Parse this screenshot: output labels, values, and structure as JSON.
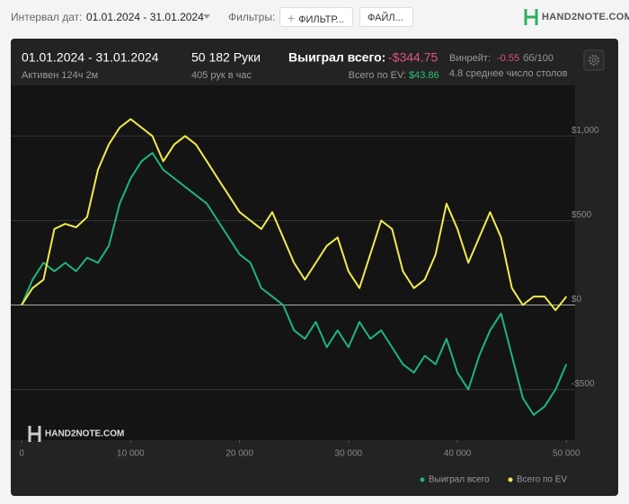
{
  "toolbar": {
    "date_label": "Интервал дат:",
    "date_range": "01.01.2024 - 31.01.2024",
    "filters_label": "Фильтры:",
    "filter_button": "ФИЛЬТР...",
    "file_button": "ФАЙЛ...",
    "logo": "HAND2NOTE.COM"
  },
  "summary": {
    "period": "01.01.2024 - 31.01.2024",
    "active": "Активен 124ч 2м",
    "hands": "50 182 Руки",
    "hands_per_hour": "405 рук в час",
    "won_label": "Выиграл всего:",
    "won_value": "-$344.75",
    "ev_label": "Всего по EV:",
    "ev_value": "$43.86",
    "winrate_label": "Винрейт:",
    "winrate_value": "-0.55",
    "winrate_unit": "бб/100",
    "tables": "4.8 среднее число столов"
  },
  "chart_data": {
    "type": "line",
    "watermark": "HAND2NOTE.COM",
    "x": [
      0,
      1000,
      2000,
      3000,
      4000,
      5000,
      6000,
      7000,
      8000,
      9000,
      10000,
      11000,
      12000,
      13000,
      14000,
      15000,
      16000,
      17000,
      18000,
      19000,
      20000,
      21000,
      22000,
      23000,
      24000,
      25000,
      26000,
      27000,
      28000,
      29000,
      30000,
      31000,
      32000,
      33000,
      34000,
      35000,
      36000,
      37000,
      38000,
      39000,
      40000,
      41000,
      42000,
      43000,
      44000,
      45000,
      46000,
      47000,
      48000,
      49000,
      50000
    ],
    "series": [
      {
        "name": "Выиграл всего",
        "color": "#1fb57b",
        "values": [
          0,
          150,
          250,
          200,
          250,
          200,
          280,
          250,
          350,
          600,
          750,
          850,
          900,
          800,
          750,
          700,
          650,
          600,
          500,
          400,
          300,
          250,
          100,
          50,
          0,
          -150,
          -200,
          -100,
          -250,
          -150,
          -250,
          -100,
          -200,
          -150,
          -250,
          -350,
          -400,
          -300,
          -350,
          -200,
          -400,
          -500,
          -300,
          -150,
          -50,
          -300,
          -550,
          -650,
          -600,
          -500,
          -350
        ]
      },
      {
        "name": "Всего по EV",
        "color": "#f2ea4f",
        "values": [
          0,
          100,
          150,
          450,
          480,
          460,
          520,
          800,
          950,
          1050,
          1100,
          1050,
          1000,
          850,
          950,
          1000,
          950,
          850,
          750,
          650,
          550,
          500,
          450,
          550,
          400,
          250,
          150,
          250,
          350,
          400,
          200,
          100,
          300,
          500,
          450,
          200,
          100,
          150,
          300,
          600,
          450,
          250,
          400,
          550,
          400,
          100,
          0,
          50,
          50,
          -30,
          50
        ]
      }
    ],
    "xlim": [
      -1000,
      50800
    ],
    "xticks": [
      0,
      {
        "value": 10000,
        "label": "10 000"
      },
      {
        "value": 20000,
        "label": "20 000"
      },
      {
        "value": 30000,
        "label": "30 000"
      },
      {
        "value": 40000,
        "label": "40 000"
      },
      {
        "value": 50000,
        "label": "50 000"
      }
    ],
    "ylim": [
      -800,
      1300
    ],
    "yticks": [
      {
        "value": -500,
        "label": "-$500"
      },
      {
        "value": 0,
        "label": "$0"
      },
      {
        "value": 500,
        "label": "$500"
      },
      {
        "value": 1000,
        "label": "$1,000"
      }
    ],
    "grid": true
  }
}
